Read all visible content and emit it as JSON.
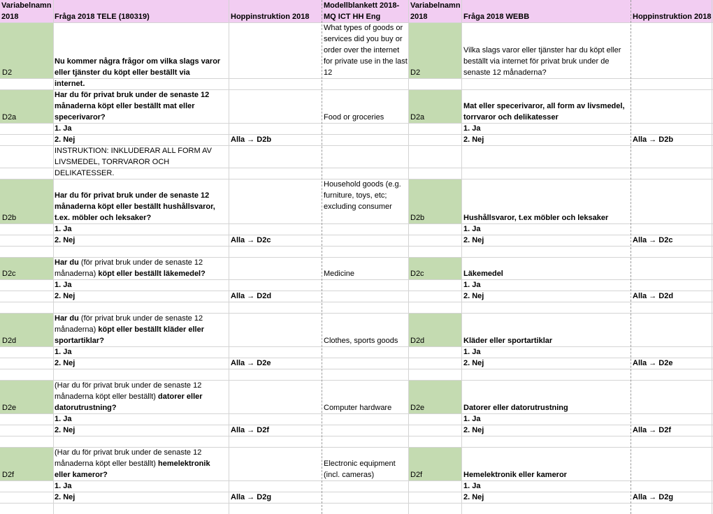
{
  "headers": {
    "var_tele_l1": "Variabelnamn",
    "var_tele_l2": "2018",
    "fraga_tele": "Fråga 2018 TELE (180319)",
    "hopp_tele": "Hoppinstruktion 2018",
    "modell_l1": "Modellblankett 2018-",
    "modell_l2": "MQ ICT HH Eng",
    "var_webb_l1": "Variabelnamn",
    "var_webb_l2": "2018",
    "fraga_webb": "Fråga 2018 WEBB",
    "hopp_webb": "Hoppinstruktion 2018"
  },
  "questions": {
    "d2": {
      "var": "D2",
      "tele_text": "Nu kommer några frågor om vilka slags varor eller tjänster du köpt eller beställt via internet.",
      "eng": "What types of goods or services did you buy or order over the internet for private use in the last 12",
      "webb_text": "Vilka slags varor eller tjänster har du köpt eller beställt via internet för privat bruk under de senaste 12 månaderna?"
    },
    "d2a": {
      "var": "D2a",
      "tele_text": "Har du för privat bruk under de senaste 12 månaderna köpt eller beställt mat eller specerivaror?",
      "opt_ja": "1. Ja",
      "opt_nej": "2. Nej",
      "hopp": "Alla → D2b",
      "instruction": "INSTRUKTION: INKLUDERAR ALL FORM AV LIVSMEDEL, TORRVAROR OCH DELIKATESSER.",
      "eng": "Food or groceries",
      "webb_text": "Mat eller specerivaror, all form av livsmedel, torrvaror och delikatesser"
    },
    "d2b": {
      "var": "D2b",
      "tele_text": "Har du för privat bruk under de senaste 12 månaderna köpt eller beställt hushållsvaror, t.ex. möbler och leksaker?",
      "opt_ja": "1. Ja",
      "opt_nej": "2. Nej",
      "hopp": "Alla → D2c",
      "eng": "Household goods (e.g. furniture, toys, etc; excluding consumer",
      "webb_text": "Hushållsvaror, t.ex möbler och leksaker"
    },
    "d2c": {
      "var": "D2c",
      "tele_pre": "Har du ",
      "tele_mid": "(för privat bruk under de senaste 12 månaderna)",
      "tele_post": " köpt eller beställt läkemedel?",
      "opt_ja": "1. Ja",
      "opt_nej": "2. Nej",
      "hopp": "Alla → D2d",
      "eng": "Medicine",
      "webb_text": "Läkemedel"
    },
    "d2d": {
      "var": "D2d",
      "tele_pre": "Har du ",
      "tele_mid": "(för privat bruk under de senaste 12 månaderna)",
      "tele_post": " köpt eller beställt kläder eller sportartiklar?",
      "opt_ja": "1. Ja",
      "opt_nej": "2. Nej",
      "hopp": "Alla → D2e",
      "eng": "Clothes, sports goods",
      "webb_text": "Kläder eller sportartiklar"
    },
    "d2e": {
      "var": "D2e",
      "tele_pre": "(Har du för privat bruk under de senaste 12 månaderna köpt eller beställt)",
      "tele_post": " datorer eller datorutrustning?",
      "opt_ja": "1. Ja",
      "opt_nej": "2. Nej",
      "hopp": "Alla → D2f",
      "eng": "Computer hardware",
      "webb_text": "Datorer eller datorutrustning"
    },
    "d2f": {
      "var": "D2f",
      "tele_pre": "(Har du för privat bruk under de senaste 12 månaderna köpt eller beställt)",
      "tele_post": " hemelektronik eller kameror?",
      "opt_ja": "1. Ja",
      "opt_nej": "2. Nej",
      "hopp": "Alla → D2g",
      "eng": "Electronic equipment (incl. cameras)",
      "webb_text": "Hemelektronik eller kameror"
    }
  }
}
